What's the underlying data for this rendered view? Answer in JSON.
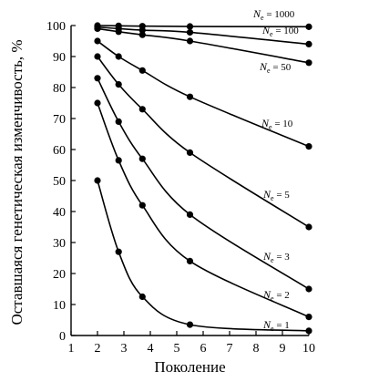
{
  "chart_data": {
    "type": "line",
    "xlabel": "Поколение",
    "ylabel": "Оставшаяся генетическая изменчивость, %",
    "xlim": [
      1,
      10
    ],
    "ylim": [
      0,
      100
    ],
    "x_ticks": [
      "1",
      "2",
      "3",
      "4",
      "5",
      "6",
      "7",
      "8",
      "9",
      "10"
    ],
    "y_ticks": [
      "0",
      "10",
      "20",
      "30",
      "40",
      "50",
      "60",
      "70",
      "80",
      "90",
      "100"
    ],
    "grid": false,
    "legend": "inline labels at curve ends",
    "series": [
      {
        "name": "Ne = 1000",
        "label_base": "N",
        "label_sub": "e",
        "label_value": " = 1000",
        "x": [
          2,
          2.8,
          3.7,
          5.5,
          10
        ],
        "y": [
          100,
          99.9,
          99.8,
          99.7,
          99.6
        ]
      },
      {
        "name": "Ne = 100",
        "label_base": "N",
        "label_sub": "e",
        "label_value": " = 100",
        "x": [
          2,
          2.8,
          3.7,
          5.5,
          10
        ],
        "y": [
          99.5,
          99,
          98.5,
          97.8,
          94
        ]
      },
      {
        "name": "Ne = 50",
        "label_base": "N",
        "label_sub": "e",
        "label_value": " = 50",
        "x": [
          2,
          2.8,
          3.7,
          5.5,
          10
        ],
        "y": [
          99,
          98,
          97,
          95,
          88
        ]
      },
      {
        "name": "Ne = 10",
        "label_base": "N",
        "label_sub": "e",
        "label_value": " = 10",
        "x": [
          2,
          2.8,
          3.7,
          5.5,
          10
        ],
        "y": [
          95,
          90,
          85.5,
          77,
          61
        ]
      },
      {
        "name": "Ne = 5",
        "label_base": "N",
        "label_sub": "e",
        "label_value": " = 5",
        "x": [
          2,
          2.8,
          3.7,
          5.5,
          10
        ],
        "y": [
          90,
          81,
          73,
          59,
          35
        ]
      },
      {
        "name": "Ne = 3",
        "label_base": "N",
        "label_sub": "e",
        "label_value": " = 3",
        "x": [
          2,
          2.8,
          3.7,
          5.5,
          10
        ],
        "y": [
          83,
          69,
          57,
          39,
          15
        ]
      },
      {
        "name": "Ne = 2",
        "label_base": "N",
        "label_sub": "e",
        "label_value": " = 2",
        "x": [
          2,
          2.8,
          3.7,
          5.5,
          10
        ],
        "y": [
          75,
          56.5,
          42,
          24,
          6
        ]
      },
      {
        "name": "Ne = 1",
        "label_base": "N",
        "label_sub": "e",
        "label_value": " = 1",
        "x": [
          2,
          2.8,
          3.7,
          5.5,
          10
        ],
        "y": [
          50,
          27,
          12.5,
          3.5,
          1.5
        ]
      }
    ]
  }
}
